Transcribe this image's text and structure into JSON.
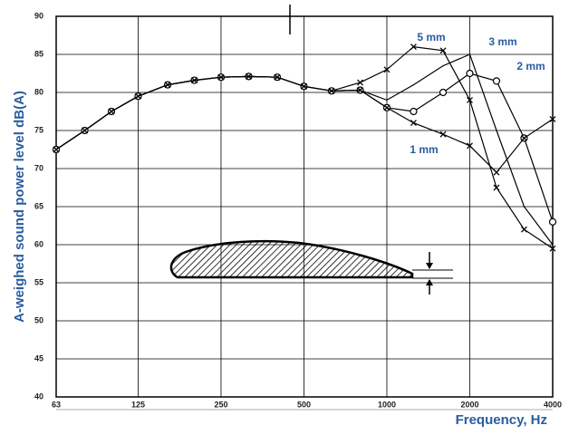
{
  "chart_data": {
    "type": "line",
    "ylabel": "A-weighed sound power level dB(A)",
    "xlabel": "Frequency, Hz",
    "x": [
      63,
      80,
      100,
      125,
      160,
      200,
      250,
      315,
      400,
      500,
      630,
      800,
      1000,
      1250,
      1600,
      2000,
      2500,
      3150,
      4000
    ],
    "log_x": true,
    "xlim": [
      63,
      4000
    ],
    "xticks": [
      63,
      125,
      250,
      500,
      1000,
      2000,
      4000
    ],
    "ylim": [
      40,
      90
    ],
    "yticks": [
      40,
      45,
      50,
      55,
      60,
      65,
      70,
      75,
      80,
      85,
      90
    ],
    "grid": true,
    "series": [
      {
        "name": "5 mm",
        "color": "#000000",
        "marker": "x",
        "values": [
          72.5,
          75,
          77.5,
          79.5,
          81,
          81.6,
          82,
          82.1,
          82,
          80.8,
          80.2,
          81.3,
          83,
          86,
          85.5,
          79,
          67.5,
          62,
          59.5
        ]
      },
      {
        "name": "3 mm",
        "color": "#000000",
        "marker": "none",
        "values": [
          72.5,
          75,
          77.5,
          79.5,
          81,
          81.6,
          82,
          82.1,
          82,
          80.8,
          80.2,
          80.3,
          79,
          81,
          83.5,
          85,
          75,
          65,
          60
        ]
      },
      {
        "name": "2 mm",
        "color": "#000000",
        "marker": "o",
        "values": [
          72.5,
          75,
          77.5,
          79.5,
          81,
          81.6,
          82,
          82.1,
          82,
          80.8,
          80.2,
          80.3,
          78,
          77.5,
          80,
          82.5,
          81.5,
          74,
          63
        ]
      },
      {
        "name": "1 mm",
        "color": "#000000",
        "marker": "x",
        "values": [
          72.5,
          75,
          77.5,
          79.5,
          81,
          81.6,
          82,
          82.1,
          82,
          80.8,
          80.2,
          80.3,
          78,
          76,
          74.5,
          73,
          69.5,
          74,
          76.5
        ]
      }
    ]
  }
}
